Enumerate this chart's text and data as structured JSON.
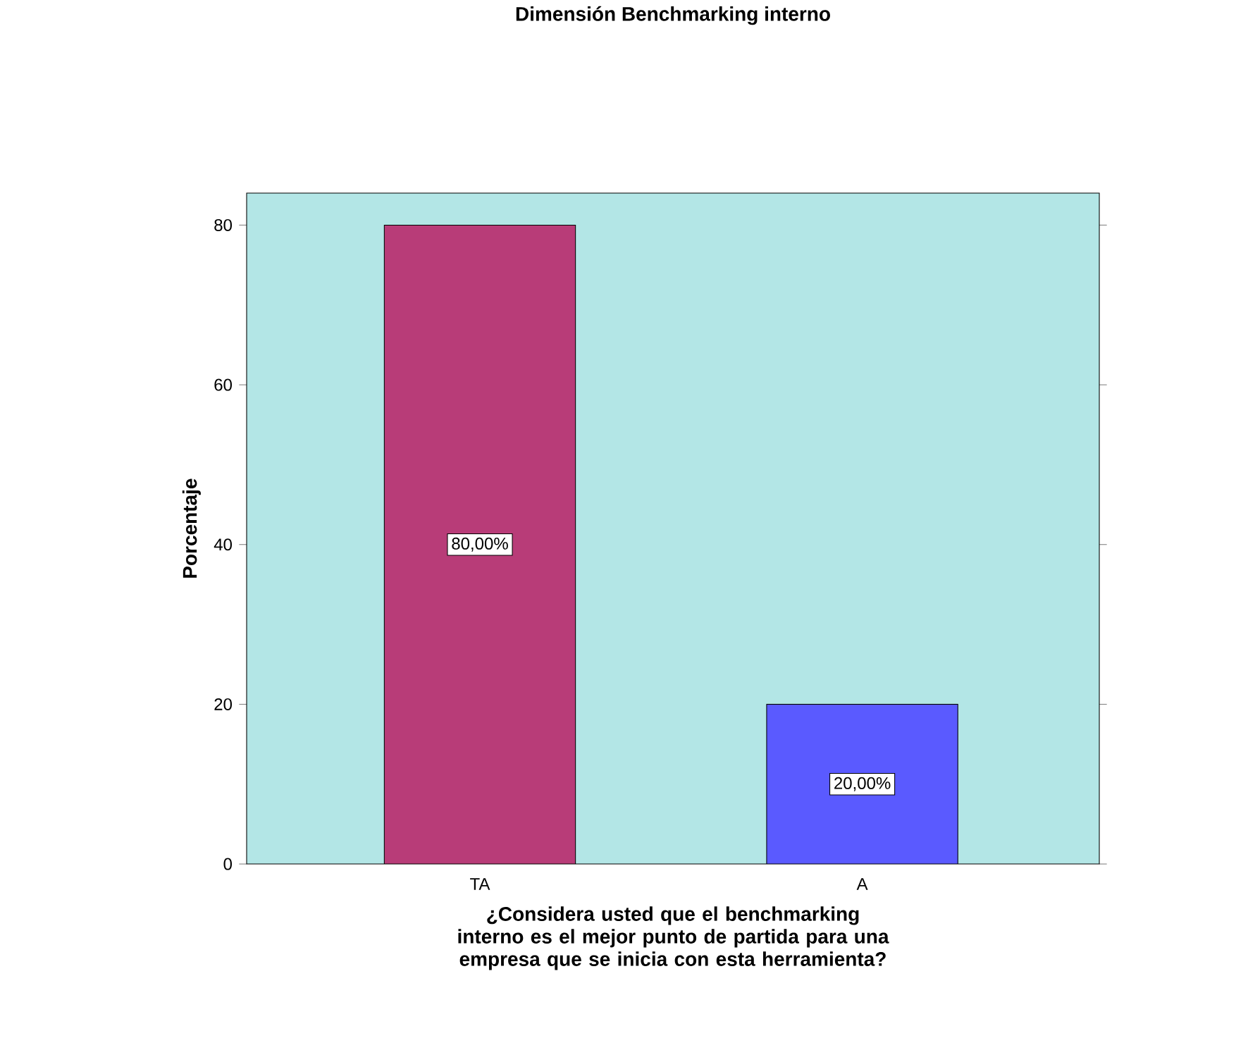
{
  "chart_data": {
    "type": "bar",
    "title": "Dimensión Benchmarking interno",
    "xlabel": "¿Considera usted que el benchmarking interno es el mejor punto de partida para una empresa que se inicia con esta herramienta?",
    "ylabel": "Porcentaje",
    "categories": [
      "TA",
      "A"
    ],
    "values": [
      80,
      20
    ],
    "colors": [
      "#b83c78",
      "#5a5aff"
    ],
    "value_labels": [
      "80,00%",
      "20,00%"
    ],
    "ylim": [
      0,
      84
    ],
    "yticks": [
      0,
      20,
      40,
      60,
      80
    ]
  }
}
